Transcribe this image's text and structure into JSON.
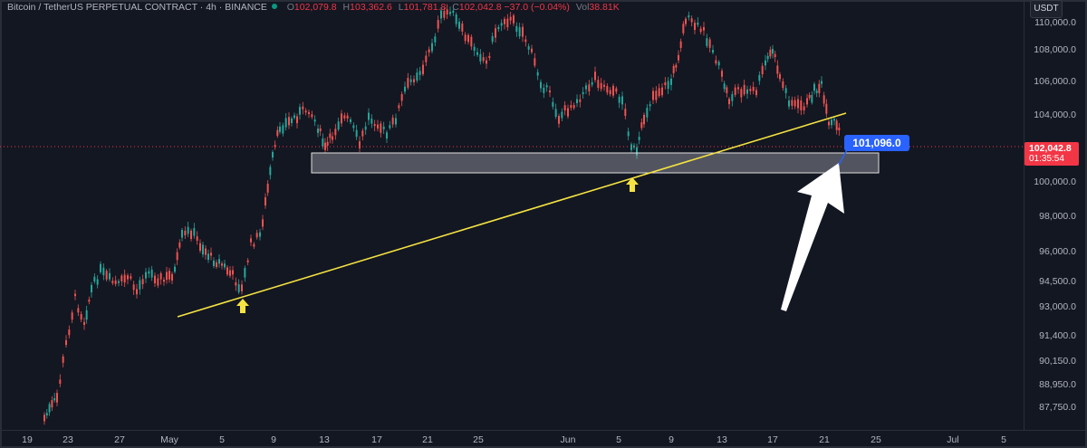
{
  "header": {
    "symbol": "Bitcoin / TetherUS PERPETUAL CONTRACT · 4h · BINANCE",
    "open_label": "O",
    "open": "102,079.8",
    "high_label": "H",
    "high": "103,362.6",
    "low_label": "L",
    "low": "101,781.8",
    "close_label": "C",
    "close": "102,042.8",
    "change": "−37.0 (−0.04%)",
    "vol_label": "Vol",
    "vol": "38.81K"
  },
  "price_scale": {
    "currency": "USDT",
    "labels": [
      "110,000.0",
      "108,000.0",
      "106,000.0",
      "104,000.0",
      "100,000.0",
      "98,000.0",
      "96,000.0",
      "94,500.0",
      "93,000.0",
      "91,400.0",
      "90,150.0",
      "88,950.0",
      "87,750.0"
    ],
    "last_price": "102,042.8",
    "countdown": "01:35:54"
  },
  "time_scale": {
    "labels": [
      "19",
      "23",
      "27",
      "May",
      "5",
      "9",
      "13",
      "17",
      "21",
      "25",
      "Jun",
      "5",
      "9",
      "13",
      "17",
      "21",
      "25",
      "Jul",
      "5"
    ]
  },
  "annotation": {
    "label": "101,096.0"
  },
  "colors": {
    "background": "#131722",
    "up": "#26a69a",
    "down": "#ef5350",
    "trendline": "#f5e342",
    "arrow": "#ffffff",
    "zone_fill": "#4a4e5a",
    "label_blue": "#2962ff",
    "marker": "#f5e342"
  }
}
